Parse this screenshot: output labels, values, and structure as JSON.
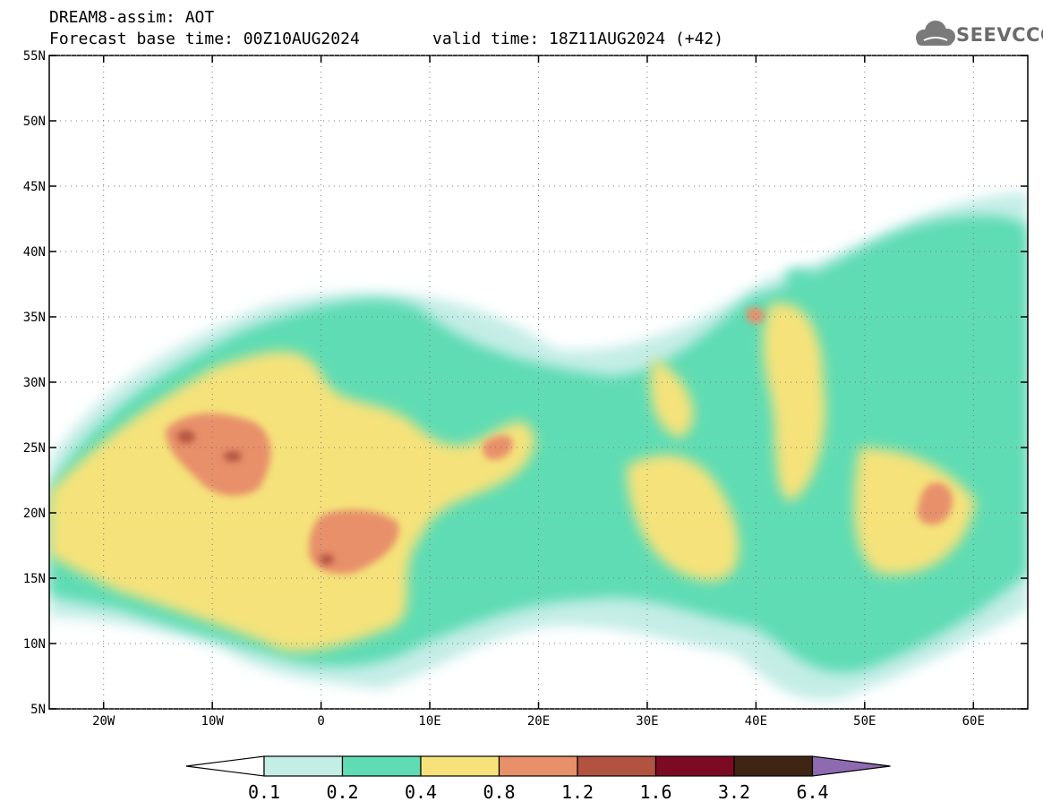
{
  "header": {
    "model_line": "DREAM8-assim: AOT",
    "base_line": "Forecast base time: 00Z10AUG2024",
    "valid_line": "valid time: 18Z11AUG2024 (+42)",
    "logo_text": "SEEVCCC"
  },
  "map": {
    "lon_range": [
      -25,
      65
    ],
    "lat_range": [
      5,
      55
    ],
    "lon_ticks": [
      {
        "value": -20,
        "label": "20W"
      },
      {
        "value": -10,
        "label": "10W"
      },
      {
        "value": 0,
        "label": "0"
      },
      {
        "value": 10,
        "label": "10E"
      },
      {
        "value": 20,
        "label": "20E"
      },
      {
        "value": 30,
        "label": "30E"
      },
      {
        "value": 40,
        "label": "40E"
      },
      {
        "value": 50,
        "label": "50E"
      },
      {
        "value": 60,
        "label": "60E"
      }
    ],
    "lat_ticks": [
      {
        "value": 55,
        "label": "55N"
      },
      {
        "value": 50,
        "label": "50N"
      },
      {
        "value": 45,
        "label": "45N"
      },
      {
        "value": 40,
        "label": "40N"
      },
      {
        "value": 35,
        "label": "35N"
      },
      {
        "value": 30,
        "label": "30N"
      },
      {
        "value": 25,
        "label": "25N"
      },
      {
        "value": 20,
        "label": "20N"
      },
      {
        "value": 15,
        "label": "15N"
      },
      {
        "value": 10,
        "label": "10N"
      },
      {
        "value": 5,
        "label": "5N"
      }
    ],
    "gridlines": "dotted"
  },
  "colorbar": {
    "labels": [
      "0.1",
      "0.2",
      "0.4",
      "0.8",
      "1.2",
      "1.6",
      "3.2",
      "6.4"
    ],
    "colors": [
      "#ffffff",
      "#c4ede6",
      "#5fdcb4",
      "#f5e27a",
      "#e8906a",
      "#b25240",
      "#7d0a24",
      "#3f2614",
      "#8e6bb1"
    ]
  }
}
